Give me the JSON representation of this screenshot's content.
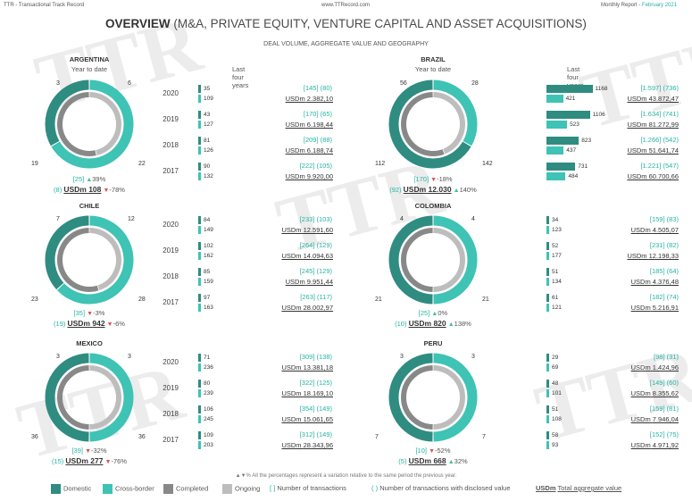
{
  "topbar": {
    "left": "TTR - Transactional Track Record",
    "center": "www.TTRecord.com",
    "right1": "Monthly Report - ",
    "right2": "February 2021"
  },
  "title": {
    "main": "OVERVIEW",
    "rest": " (M&A, PRIVATE EQUITY, VENTURE CAPITAL AND ASSET ACQUISITIONS)"
  },
  "subtitle": "DEAL VOLUME, AGGREGATE VALUE AND GEOGRAPHY",
  "labels": {
    "ytd": "Year to date",
    "lfy": "Last four years",
    "usdm": "USDm"
  },
  "colors": {
    "domestic": "#2f8c81",
    "cross": "#3ec3b4",
    "completed": "#888888",
    "ongoing": "#bdbdbd",
    "accent": "#26b3a3"
  },
  "countries": [
    {
      "name": "ARGENTINA",
      "domestic": 3,
      "cross": 6,
      "completed": 22,
      "ongoing": 19,
      "ytd_txn": "[25]",
      "ytd_txn_var": "39%",
      "ytd_txn_dir": "up",
      "ytd_disc": "(8)",
      "ytd_val": "108",
      "ytd_val_var": "-78%",
      "ytd_val_dir": "dn",
      "years": [
        {
          "y": "2020",
          "d": 35,
          "c": 109,
          "txn": "[145]",
          "disc": "(80)",
          "usd": "2.382,10"
        },
        {
          "y": "2019",
          "d": 43,
          "c": 127,
          "txn": "[170]",
          "disc": "(65)",
          "usd": "6.198,44"
        },
        {
          "y": "2018",
          "d": 81,
          "c": 126,
          "txn": "[209]",
          "disc": "(88)",
          "usd": "6.188,74"
        },
        {
          "y": "2017",
          "d": 90,
          "c": 132,
          "txn": "[222]",
          "disc": "(105)",
          "usd": "9.920,00"
        }
      ]
    },
    {
      "name": "BRAZIL",
      "domestic": 56,
      "cross": 28,
      "completed": 142,
      "ongoing": 112,
      "ytd_txn": "[170]",
      "ytd_txn_var": "-18%",
      "ytd_txn_dir": "dn",
      "ytd_disc": "(92)",
      "ytd_val": "12.030",
      "ytd_val_var": "140%",
      "ytd_val_dir": "up",
      "years": [
        {
          "y": "2020",
          "d": 1168,
          "c": 421,
          "txn": "[1.597]",
          "disc": "(736)",
          "usd": "43.872,47"
        },
        {
          "y": "2019",
          "d": 1106,
          "c": 523,
          "txn": "[1.634]",
          "disc": "(741)",
          "usd": "81.272,99"
        },
        {
          "y": "2018",
          "d": 823,
          "c": 437,
          "txn": "[1.266]",
          "disc": "(542)",
          "usd": "51.641,74"
        },
        {
          "y": "2017",
          "d": 731,
          "c": 484,
          "txn": "[1.221]",
          "disc": "(547)",
          "usd": "60.700,66"
        }
      ]
    },
    {
      "name": "CHILE",
      "domestic": 7,
      "cross": 12,
      "completed": 28,
      "ongoing": 23,
      "ytd_txn": "[35]",
      "ytd_txn_var": "-3%",
      "ytd_txn_dir": "dn",
      "ytd_disc": "(19)",
      "ytd_val": "942",
      "ytd_val_var": "-6%",
      "ytd_val_dir": "dn",
      "years": [
        {
          "y": "2020",
          "d": 84,
          "c": 149,
          "txn": "[233]",
          "disc": "(103)",
          "usd": "12.591,60"
        },
        {
          "y": "2019",
          "d": 102,
          "c": 162,
          "txn": "[264]",
          "disc": "(129)",
          "usd": "14.094,63"
        },
        {
          "y": "2018",
          "d": 85,
          "c": 159,
          "txn": "[245]",
          "disc": "(129)",
          "usd": "9.951,44"
        },
        {
          "y": "2017",
          "d": 97,
          "c": 163,
          "txn": "[263]",
          "disc": "(117)",
          "usd": "28.002,97"
        }
      ]
    },
    {
      "name": "COLOMBIA",
      "domestic": 4,
      "cross": 4,
      "completed": 21,
      "ongoing": 21,
      "ytd_txn": "[25]",
      "ytd_txn_var": "0%",
      "ytd_txn_dir": "up",
      "ytd_disc": "(10)",
      "ytd_val": "820",
      "ytd_val_var": "138%",
      "ytd_val_dir": "up",
      "years": [
        {
          "y": "",
          "d": 34,
          "c": 123,
          "txn": "[159]",
          "disc": "(83)",
          "usd": "4.505,07"
        },
        {
          "y": "",
          "d": 52,
          "c": 177,
          "txn": "[231]",
          "disc": "(82)",
          "usd": "12.198,33"
        },
        {
          "y": "",
          "d": 51,
          "c": 134,
          "txn": "[185]",
          "disc": "(64)",
          "usd": "4.376,48"
        },
        {
          "y": "",
          "d": 61,
          "c": 121,
          "txn": "[182]",
          "disc": "(74)",
          "usd": "5.216,91"
        }
      ]
    },
    {
      "name": "MEXICO",
      "domestic": 3,
      "cross": 3,
      "completed": 36,
      "ongoing": 36,
      "ytd_txn": "[39]",
      "ytd_txn_var": "-32%",
      "ytd_txn_dir": "dn",
      "ytd_disc": "(15)",
      "ytd_val": "277",
      "ytd_val_var": "-76%",
      "ytd_val_dir": "dn",
      "years": [
        {
          "y": "2020",
          "d": 71,
          "c": 236,
          "txn": "[309]",
          "disc": "(138)",
          "usd": "13.381,18"
        },
        {
          "y": "2019",
          "d": 80,
          "c": 239,
          "txn": "[322]",
          "disc": "(125)",
          "usd": "18.169,10"
        },
        {
          "y": "2018",
          "d": 106,
          "c": 245,
          "txn": "[354]",
          "disc": "(149)",
          "usd": "15.061,65"
        },
        {
          "y": "2017",
          "d": 109,
          "c": 203,
          "txn": "[312]",
          "disc": "(149)",
          "usd": "28.343,96"
        }
      ]
    },
    {
      "name": "PERU",
      "domestic": 3,
      "cross": 3,
      "completed": 7,
      "ongoing": 7,
      "ytd_txn": "[10]",
      "ytd_txn_var": "-52%",
      "ytd_txn_dir": "dn",
      "ytd_disc": "(5)",
      "ytd_val": "668",
      "ytd_val_var": "32%",
      "ytd_val_dir": "up",
      "years": [
        {
          "y": "",
          "d": 29,
          "c": 69,
          "txn": "[98]",
          "disc": "(31)",
          "usd": "1.424,96"
        },
        {
          "y": "",
          "d": 48,
          "c": 101,
          "txn": "[149]",
          "disc": "(60)",
          "usd": "8.355,62"
        },
        {
          "y": "",
          "d": 51,
          "c": 108,
          "txn": "[159]",
          "disc": "(81)",
          "usd": "7.946,04"
        },
        {
          "y": "",
          "d": 58,
          "c": 93,
          "txn": "[152]",
          "disc": "(75)",
          "usd": "4.971,92"
        }
      ]
    }
  ],
  "note": "▲▼% All the percentages represent a variation relative to the same period the previous year.",
  "legend": {
    "domestic": "Domestic",
    "cross": "Cross-border",
    "completed": "Completed",
    "ongoing": "Ongoing",
    "brackets": "[ ]",
    "num_txn": "Number of transactions",
    "parens": "( )",
    "num_disc": "Number of transactions with disclosed value",
    "usdm": "USDm",
    "total": "Total aggregate value"
  }
}
